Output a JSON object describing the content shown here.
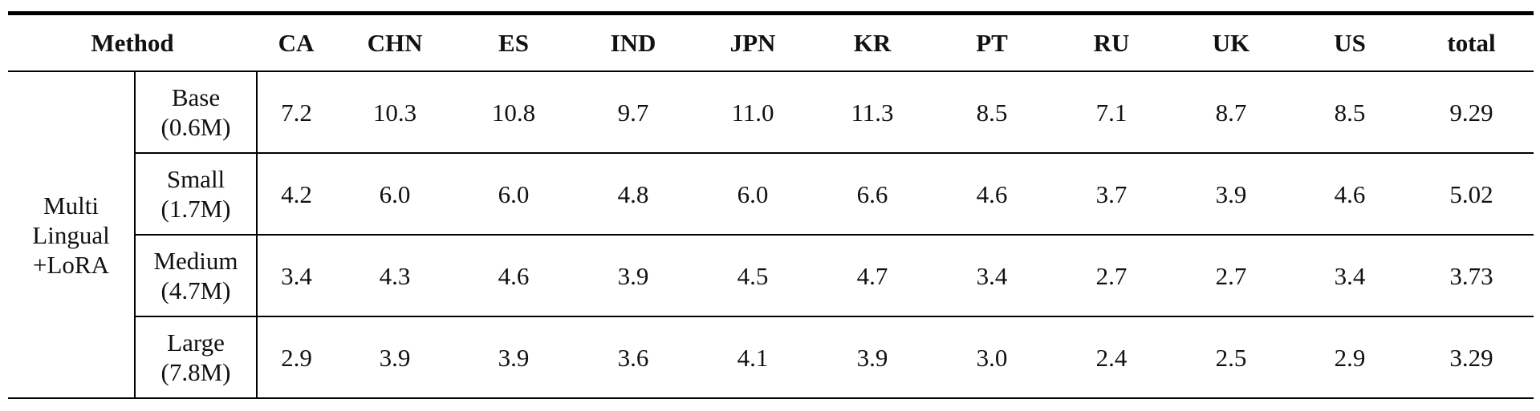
{
  "table": {
    "header": {
      "method": "Method",
      "columns": [
        "CA",
        "CHN",
        "ES",
        "IND",
        "JPN",
        "KR",
        "PT",
        "RU",
        "UK",
        "US",
        "total"
      ]
    },
    "group": {
      "lines": [
        "Multi",
        "Lingual",
        "+LoRA"
      ]
    },
    "rows": [
      {
        "size_name": "Base",
        "size_params": "(0.6M)",
        "values": [
          "7.2",
          "10.3",
          "10.8",
          "9.7",
          "11.0",
          "11.3",
          "8.5",
          "7.1",
          "8.7",
          "8.5",
          "9.29"
        ]
      },
      {
        "size_name": "Small",
        "size_params": "(1.7M)",
        "values": [
          "4.2",
          "6.0",
          "6.0",
          "4.8",
          "6.0",
          "6.6",
          "4.6",
          "3.7",
          "3.9",
          "4.6",
          "5.02"
        ]
      },
      {
        "size_name": "Medium",
        "size_params": "(4.7M)",
        "values": [
          "3.4",
          "4.3",
          "4.6",
          "3.9",
          "4.5",
          "4.7",
          "3.4",
          "2.7",
          "2.7",
          "3.4",
          "3.73"
        ]
      },
      {
        "size_name": "Large",
        "size_params": "(7.8M)",
        "values": [
          "2.9",
          "3.9",
          "3.9",
          "3.6",
          "4.1",
          "3.9",
          "3.0",
          "2.4",
          "2.5",
          "2.9",
          "3.29"
        ]
      }
    ]
  }
}
